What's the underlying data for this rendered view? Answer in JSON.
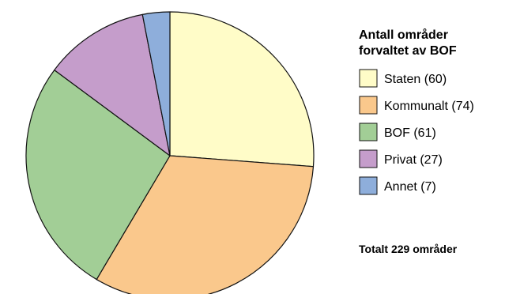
{
  "chart_data": {
    "type": "pie",
    "legend_title": [
      "Antall områder",
      "forvaltet av BOF"
    ],
    "slices": [
      {
        "label": "Staten (60)",
        "value": 60,
        "color": "#FFFCC8"
      },
      {
        "label": "Kommunalt (74)",
        "value": 74,
        "color": "#FAC88C"
      },
      {
        "label": "BOF (61)",
        "value": 61,
        "color": "#A2CE96"
      },
      {
        "label": "Privat (27)",
        "value": 27,
        "color": "#C59DCB"
      },
      {
        "label": "Annet (7)",
        "value": 7,
        "color": "#8EAEDB"
      }
    ],
    "total_text": "Totalt 229 områder",
    "legend_placement": "right"
  }
}
